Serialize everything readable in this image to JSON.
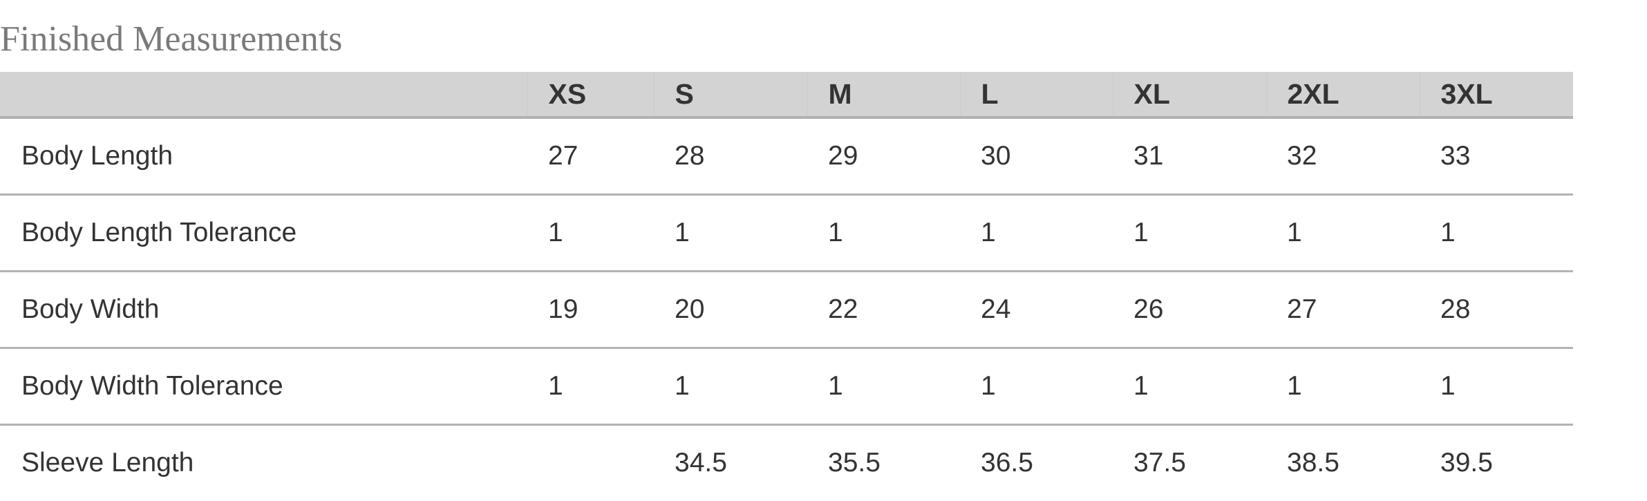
{
  "title": "Finished Measurements",
  "columns": [
    "",
    "XS",
    "S",
    "M",
    "L",
    "XL",
    "2XL",
    "3XL"
  ],
  "rows": [
    {
      "label": "Body Length",
      "values": [
        "27",
        "28",
        "29",
        "30",
        "31",
        "32",
        "33"
      ]
    },
    {
      "label": "Body Length Tolerance",
      "values": [
        "1",
        "1",
        "1",
        "1",
        "1",
        "1",
        "1"
      ]
    },
    {
      "label": "Body Width",
      "values": [
        "19",
        "20",
        "22",
        "24",
        "26",
        "27",
        "28"
      ]
    },
    {
      "label": "Body Width Tolerance",
      "values": [
        "1",
        "1",
        "1",
        "1",
        "1",
        "1",
        "1"
      ]
    },
    {
      "label": "Sleeve Length",
      "values": [
        "",
        "34.5",
        "35.5",
        "36.5",
        "37.5",
        "38.5",
        "39.5"
      ]
    }
  ],
  "colors": {
    "header_bg": "#d3d3d3",
    "text": "#333333",
    "title": "#7a7a7a",
    "rule": "#b0b0b0"
  }
}
